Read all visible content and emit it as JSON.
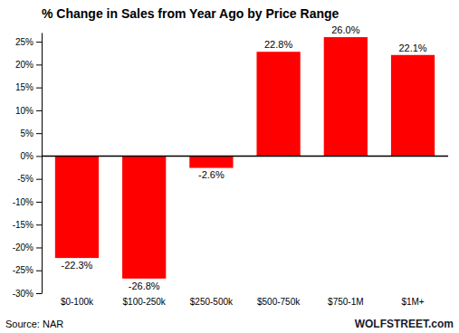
{
  "chart_data": {
    "type": "bar",
    "title": "% Change in Sales from Year Ago by Price Range",
    "categories": [
      "$0-100k",
      "$100-250k",
      "$250-500k",
      "$500-750k",
      "$750-1M",
      "$1M+"
    ],
    "values": [
      -22.3,
      -26.8,
      -2.6,
      22.8,
      26.0,
      22.1
    ],
    "value_labels": [
      "-22.3%",
      "-26.8%",
      "-2.6%",
      "22.8%",
      "26.0%",
      "22.1%"
    ],
    "data_labels": true,
    "color": "#FF0000",
    "ylim": [
      -30,
      27
    ],
    "yticks": [
      {
        "value": -30,
        "label": "-30%"
      },
      {
        "value": -25,
        "label": "-25%"
      },
      {
        "value": -20,
        "label": "-20%"
      },
      {
        "value": -15,
        "label": "-15%"
      },
      {
        "value": -10,
        "label": "-10%"
      },
      {
        "value": -5,
        "label": "-5%"
      },
      {
        "value": 0,
        "label": "0%"
      },
      {
        "value": 5,
        "label": "5%"
      },
      {
        "value": 10,
        "label": "10%"
      },
      {
        "value": 15,
        "label": "15%"
      },
      {
        "value": 20,
        "label": "20%"
      },
      {
        "value": 25,
        "label": "25%"
      }
    ],
    "grid": false,
    "annotations": [
      "Source: NAR",
      "WOLFSTREET.com"
    ]
  }
}
